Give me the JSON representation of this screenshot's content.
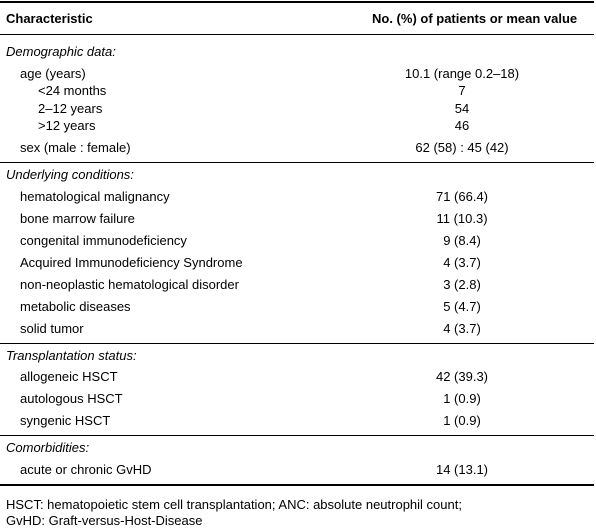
{
  "table": {
    "header": [
      "Characteristic",
      "No. (%) of patients or mean value"
    ],
    "sections": [
      {
        "title": "Demographic data:",
        "rows": [
          {
            "label": "age (years)",
            "value": "10.1 (range 0.2–18)",
            "subrows": [
              {
                "label": "<24 months",
                "value": "7"
              },
              {
                "label": "2–12 years",
                "value": "54"
              },
              {
                "label": ">12 years",
                "value": "46"
              }
            ]
          },
          {
            "label": "sex (male : female)",
            "value": "62 (58) : 45 (42)"
          }
        ]
      },
      {
        "title": "Underlying conditions:",
        "rows": [
          {
            "label": "hematological malignancy",
            "value": "71 (66.4)"
          },
          {
            "label": "bone marrow failure",
            "value": "11 (10.3)"
          },
          {
            "label": "congenital immunodeficiency",
            "value": "9 (8.4)"
          },
          {
            "label": "Acquired Immunodeficiency Syndrome",
            "value": "4 (3.7)"
          },
          {
            "label": "non-neoplastic hematological disorder",
            "value": "3 (2.8)"
          },
          {
            "label": "metabolic diseases",
            "value": "5 (4.7)"
          },
          {
            "label": "solid tumor",
            "value": "4 (3.7)"
          }
        ]
      },
      {
        "title": "Transplantation status:",
        "rows": [
          {
            "label": "allogeneic HSCT",
            "value": "42 (39.3)"
          },
          {
            "label": "autologous HSCT",
            "value": "1 (0.9)"
          },
          {
            "label": "syngenic HSCT",
            "value": "1 (0.9)"
          }
        ]
      },
      {
        "title": "Comorbidities:",
        "rows": [
          {
            "label": "acute or chronic GvHD",
            "value": "14 (13.1)"
          }
        ]
      }
    ],
    "footnote": [
      "HSCT: hematopoietic stem cell transplantation; ANC: absolute neutrophil count;",
      "GvHD: Graft-versus-Host-Disease"
    ]
  }
}
